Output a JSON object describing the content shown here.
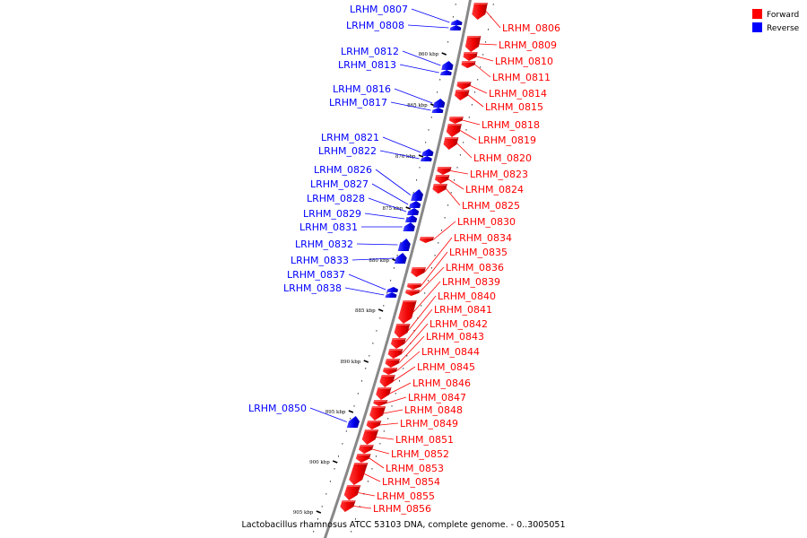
{
  "legend": [
    {
      "label": "Forward",
      "color": "#ff0000"
    },
    {
      "label": "Reverse",
      "color": "#0000ff"
    }
  ],
  "caption": "Lactobacillus rhamnosus ATCC 53103 DNA, complete genome. - 0..3005051",
  "colors": {
    "forward": "#ff0000",
    "reverse": "#0000ff",
    "backbone": "#888888"
  },
  "ticks": [
    {
      "label": "860 kbp",
      "kbp": 860
    },
    {
      "label": "865 kbp",
      "kbp": 865
    },
    {
      "label": "870 kbp",
      "kbp": 870
    },
    {
      "label": "875 kbp",
      "kbp": 875
    },
    {
      "label": "880 kbp",
      "kbp": 880
    },
    {
      "label": "885 kbp",
      "kbp": 885
    },
    {
      "label": "890 kbp",
      "kbp": 890
    },
    {
      "label": "895 kbp",
      "kbp": 895
    },
    {
      "label": "900 kbp",
      "kbp": 900
    },
    {
      "label": "905 kbp",
      "kbp": 905
    }
  ],
  "forward_genes": [
    {
      "id": "LRHM_0806"
    },
    {
      "id": "LRHM_0809"
    },
    {
      "id": "LRHM_0810"
    },
    {
      "id": "LRHM_0811"
    },
    {
      "id": "LRHM_0814"
    },
    {
      "id": "LRHM_0815"
    },
    {
      "id": "LRHM_0818"
    },
    {
      "id": "LRHM_0819"
    },
    {
      "id": "LRHM_0820"
    },
    {
      "id": "LRHM_0823"
    },
    {
      "id": "LRHM_0824"
    },
    {
      "id": "LRHM_0825"
    },
    {
      "id": "LRHM_0830"
    },
    {
      "id": "LRHM_0834"
    },
    {
      "id": "LRHM_0835"
    },
    {
      "id": "LRHM_0836"
    },
    {
      "id": "LRHM_0839"
    },
    {
      "id": "LRHM_0840"
    },
    {
      "id": "LRHM_0841"
    },
    {
      "id": "LRHM_0842"
    },
    {
      "id": "LRHM_0843"
    },
    {
      "id": "LRHM_0844"
    },
    {
      "id": "LRHM_0845"
    },
    {
      "id": "LRHM_0846"
    },
    {
      "id": "LRHM_0847"
    },
    {
      "id": "LRHM_0848"
    },
    {
      "id": "LRHM_0849"
    },
    {
      "id": "LRHM_0851"
    },
    {
      "id": "LRHM_0852"
    },
    {
      "id": "LRHM_0853"
    },
    {
      "id": "LRHM_0854"
    },
    {
      "id": "LRHM_0855"
    },
    {
      "id": "LRHM_0856"
    }
  ],
  "reverse_genes": [
    {
      "id": "LRHM_0807"
    },
    {
      "id": "LRHM_0808"
    },
    {
      "id": "LRHM_0812"
    },
    {
      "id": "LRHM_0813"
    },
    {
      "id": "LRHM_0816"
    },
    {
      "id": "LRHM_0817"
    },
    {
      "id": "LRHM_0821"
    },
    {
      "id": "LRHM_0822"
    },
    {
      "id": "LRHM_0826"
    },
    {
      "id": "LRHM_0827"
    },
    {
      "id": "LRHM_0828"
    },
    {
      "id": "LRHM_0829"
    },
    {
      "id": "LRHM_0831"
    },
    {
      "id": "LRHM_0832"
    },
    {
      "id": "LRHM_0833"
    },
    {
      "id": "LRHM_0837"
    },
    {
      "id": "LRHM_0838"
    },
    {
      "id": "LRHM_0850"
    }
  ]
}
